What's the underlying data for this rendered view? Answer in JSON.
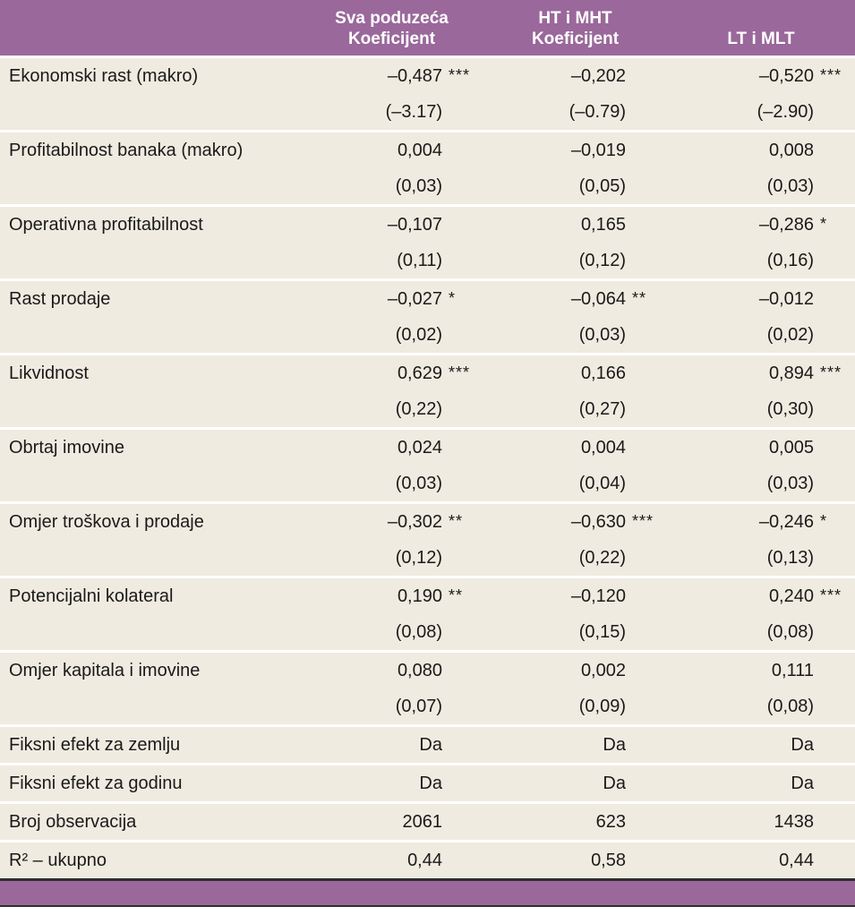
{
  "table": {
    "header": {
      "col2_line1": "Sva poduzeća",
      "col2_line2": "Koeficijent",
      "col3_line1": "HT i MHT",
      "col3_line2": "Koeficijent",
      "col4": "LT i MLT"
    },
    "variables": [
      {
        "label": "Ekonomski rast (makro)",
        "coef": [
          "–0,487",
          "–0,202",
          "–0,520"
        ],
        "stars": [
          "***",
          "",
          "***"
        ],
        "se": [
          "(–3.17)",
          "(–0.79)",
          "(–2.90)"
        ]
      },
      {
        "label": "Profitabilnost banaka (makro)",
        "coef": [
          "0,004",
          "–0,019",
          "0,008"
        ],
        "stars": [
          "",
          "",
          ""
        ],
        "se": [
          "(0,03)",
          "(0,05)",
          "(0,03)"
        ]
      },
      {
        "label": "Operativna profitabilnost",
        "coef": [
          "–0,107",
          "0,165",
          "–0,286"
        ],
        "stars": [
          "",
          "",
          "*"
        ],
        "se": [
          "(0,11)",
          "(0,12)",
          "(0,16)"
        ]
      },
      {
        "label": "Rast prodaje",
        "coef": [
          "–0,027",
          "–0,064",
          "–0,012"
        ],
        "stars": [
          "*",
          "**",
          ""
        ],
        "se": [
          "(0,02)",
          "(0,03)",
          "(0,02)"
        ]
      },
      {
        "label": "Likvidnost",
        "coef": [
          "0,629",
          "0,166",
          "0,894"
        ],
        "stars": [
          "***",
          "",
          "***"
        ],
        "se": [
          "(0,22)",
          "(0,27)",
          "(0,30)"
        ]
      },
      {
        "label": "Obrtaj imovine",
        "coef": [
          "0,024",
          "0,004",
          "0,005"
        ],
        "stars": [
          "",
          "",
          ""
        ],
        "se": [
          "(0,03)",
          "(0,04)",
          "(0,03)"
        ]
      },
      {
        "label": "Omjer troškova i prodaje",
        "coef": [
          "–0,302",
          "–0,630",
          "–0,246"
        ],
        "stars": [
          "**",
          "***",
          "*"
        ],
        "se": [
          "(0,12)",
          "(0,22)",
          "(0,13)"
        ]
      },
      {
        "label": "Potencijalni kolateral",
        "coef": [
          "0,190",
          "–0,120",
          "0,240"
        ],
        "stars": [
          "**",
          "",
          "***"
        ],
        "se": [
          "(0,08)",
          "(0,15)",
          "(0,08)"
        ]
      },
      {
        "label": "Omjer kapitala i imovine",
        "coef": [
          "0,080",
          "0,002",
          "0,111"
        ],
        "stars": [
          "",
          "",
          ""
        ],
        "se": [
          "(0,07)",
          "(0,09)",
          "(0,08)"
        ]
      }
    ],
    "summary_rows": [
      {
        "label": "Fiksni efekt za zemlju",
        "values": [
          "Da",
          "Da",
          "Da"
        ]
      },
      {
        "label": "Fiksni efekt za godinu",
        "values": [
          "Da",
          "Da",
          "Da"
        ]
      },
      {
        "label": "Broj observacija",
        "values": [
          "2061",
          "623",
          "1438"
        ]
      },
      {
        "label": "R² – ukupno",
        "values": [
          "0,44",
          "0,58",
          "0,44"
        ]
      }
    ],
    "colors": {
      "header_bg": "#9a689b",
      "row_bg": "#f0ebe0",
      "separator": "#ffffff",
      "text": "#1a1a1a"
    }
  }
}
